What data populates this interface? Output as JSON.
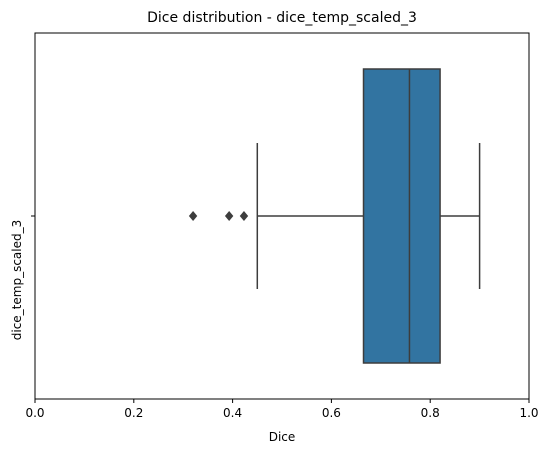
{
  "chart_data": {
    "type": "box",
    "title": "Dice distribution - dice_temp_scaled_3",
    "xlabel": "Dice",
    "ylabel": "",
    "xlim": [
      0.0,
      1.0
    ],
    "xticks": [
      0.0,
      0.2,
      0.4,
      0.6,
      0.8,
      1.0
    ],
    "xtick_labels": [
      "0.0",
      "0.2",
      "0.4",
      "0.6",
      "0.8",
      "1.0"
    ],
    "categories": [
      "dice_temp_scaled_3"
    ],
    "boxes": [
      {
        "category": "dice_temp_scaled_3",
        "q1": 0.665,
        "median": 0.758,
        "q3": 0.82,
        "whisker_low": 0.45,
        "whisker_high": 0.9,
        "outliers": [
          0.32,
          0.393,
          0.423
        ]
      }
    ],
    "grid": false,
    "colors": {
      "box_fill": "#3274a1",
      "line": "#3d3d3d",
      "axis": "#000000"
    }
  }
}
